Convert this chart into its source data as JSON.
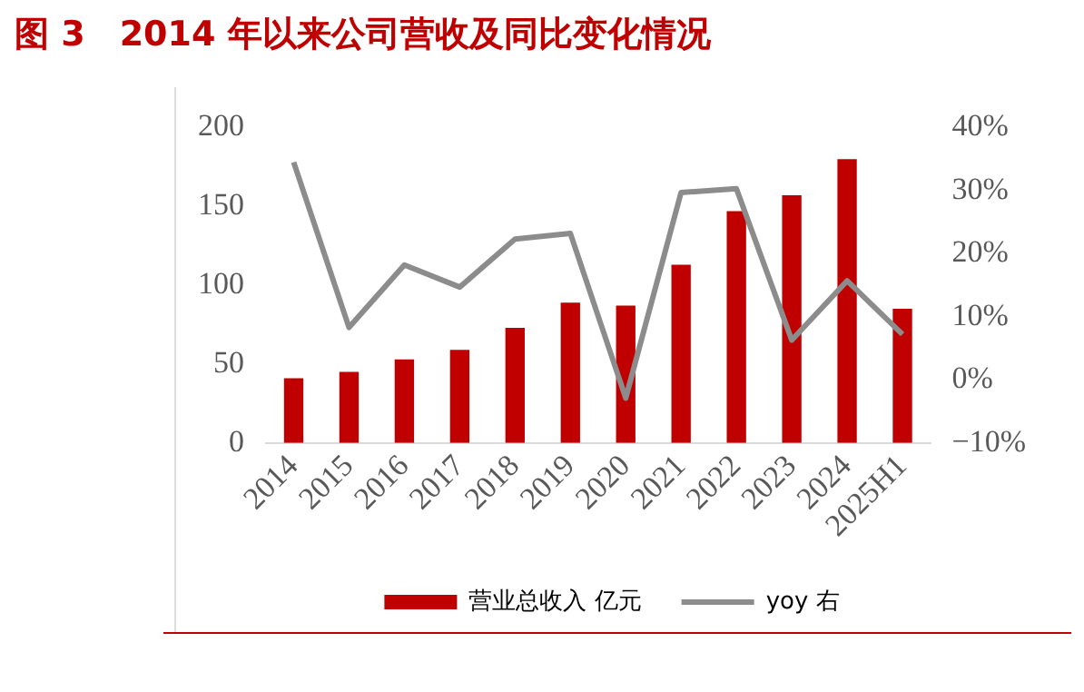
{
  "chart_data": {
    "type": "bar",
    "title": "图 3　2014 年以来公司营收及同比变化情况",
    "categories": [
      "2014",
      "2015",
      "2016",
      "2017",
      "2018",
      "2019",
      "2020",
      "2021",
      "2022",
      "2023",
      "2024",
      "2025H1"
    ],
    "series": [
      {
        "name": "营业总收入 亿元",
        "color": "#c00000",
        "values": [
          41,
          45,
          53,
          59,
          73,
          89,
          87,
          113,
          147,
          157,
          180,
          85
        ]
      },
      {
        "name": "yoy 右",
        "type": "line",
        "axis": "y2",
        "color": "#8c8c8c",
        "values": [
          34.5,
          8.3,
          18.2,
          14.7,
          22.3,
          23.2,
          -2.9,
          29.7,
          30.3,
          6.3,
          15.7,
          7.2
        ]
      }
    ],
    "ylim": [
      0,
      200
    ],
    "yticks": [
      0,
      50,
      100,
      150,
      200
    ],
    "y2lim": [
      -10,
      40
    ],
    "y2ticks": [
      {
        "value": -10,
        "label": "−10%"
      },
      {
        "value": 0,
        "label": "0%"
      },
      {
        "value": 10,
        "label": "10%"
      },
      {
        "value": 20,
        "label": "20%"
      },
      {
        "value": 30,
        "label": "30%"
      },
      {
        "value": 40,
        "label": "40%"
      }
    ],
    "grid": false,
    "legend": "bottom",
    "marker": "none",
    "line_style": "solid"
  }
}
